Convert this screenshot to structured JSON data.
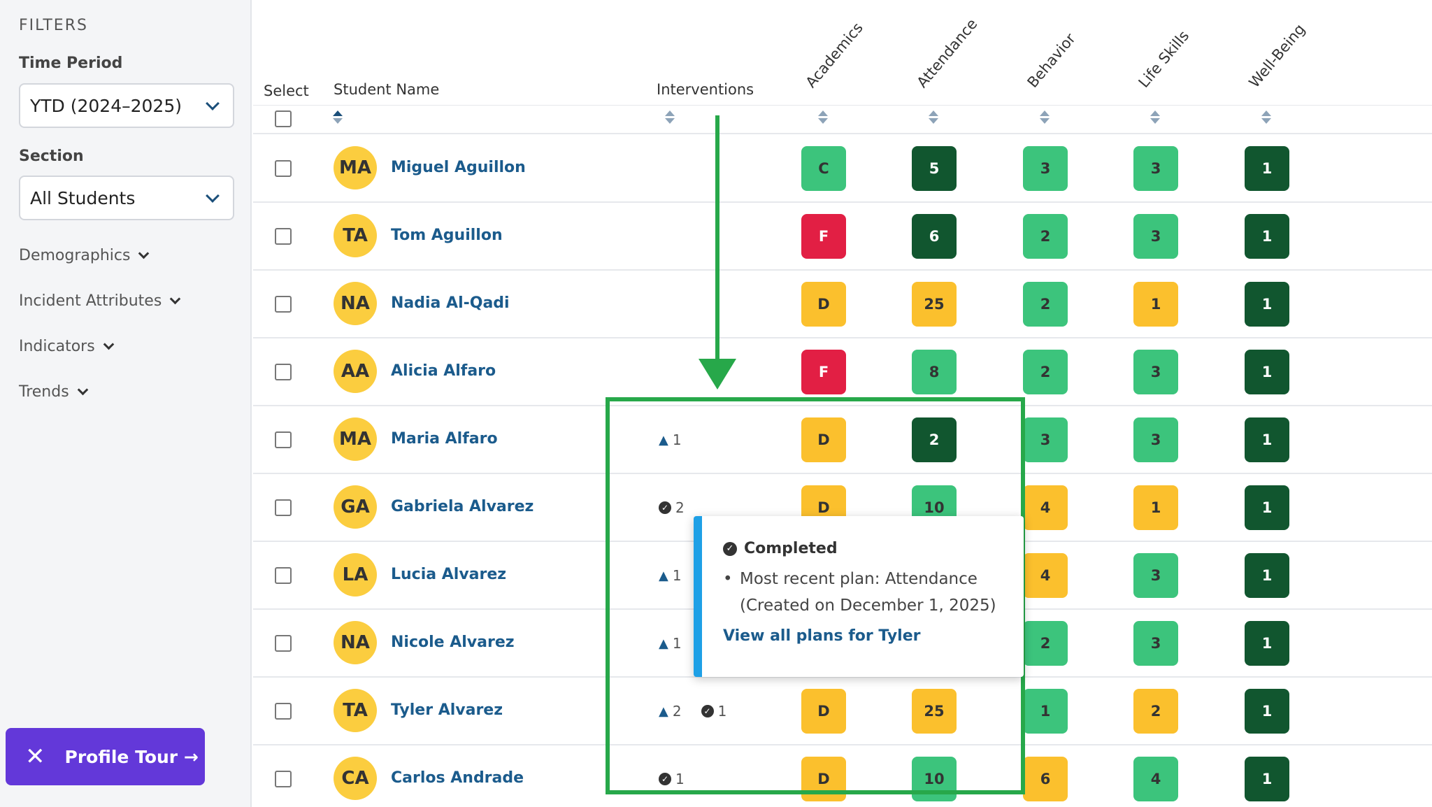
{
  "sidebar": {
    "filters_heading": "FILTERS",
    "time_period": {
      "label": "Time Period",
      "value": "YTD (2024–2025)"
    },
    "section": {
      "label": "Section",
      "value": "All Students"
    },
    "expanders": [
      "Demographics",
      "Incident Attributes",
      "Indicators",
      "Trends"
    ],
    "tour_button": {
      "label": "Profile Tour →",
      "close_icon": "✕"
    }
  },
  "table": {
    "headers": {
      "select": "Select",
      "student_name": "Student Name",
      "interventions": "Interventions",
      "academics": "Academics",
      "attendance": "Attendance",
      "behavior": "Behavior",
      "life_skills": "Life Skills",
      "well_being": "Well-Being"
    },
    "colors": {
      "dark_green": "#11562f",
      "green": "#3cc47c",
      "yellow": "#fbc02d",
      "red": "#e21f44",
      "avatar": "#fbcd3f",
      "link": "#1b5b8c",
      "annotation": "#27a84a",
      "tooltip_accent": "#1ea0e6"
    },
    "rows": [
      {
        "initials": "MA",
        "name": "Miguel Aguillon",
        "int_a": "",
        "int_b": "",
        "academics": "C",
        "attendance": "5",
        "behavior": "3",
        "life_skills": "3",
        "well_being": "1"
      },
      {
        "initials": "TA",
        "name": "Tom Aguillon",
        "int_a": "",
        "int_b": "",
        "academics": "F",
        "attendance": "6",
        "behavior": "2",
        "life_skills": "3",
        "well_being": "1"
      },
      {
        "initials": "NA",
        "name": "Nadia Al-Qadi",
        "int_a": "",
        "int_b": "",
        "academics": "D",
        "attendance": "25",
        "behavior": "2",
        "life_skills": "1",
        "well_being": "1"
      },
      {
        "initials": "AA",
        "name": "Alicia Alfaro",
        "int_a": "",
        "int_b": "",
        "academics": "F",
        "attendance": "8",
        "behavior": "2",
        "life_skills": "3",
        "well_being": "1"
      },
      {
        "initials": "MA",
        "name": "Maria Alfaro",
        "int_a": "1",
        "int_b": "",
        "academics": "D",
        "attendance": "2",
        "behavior": "3",
        "life_skills": "3",
        "well_being": "1"
      },
      {
        "initials": "GA",
        "name": "Gabriela Alvarez",
        "int_a": "",
        "int_b": "2",
        "academics": "D",
        "attendance": "10",
        "behavior": "4",
        "life_skills": "1",
        "well_being": "1"
      },
      {
        "initials": "LA",
        "name": "Lucia Alvarez",
        "int_a": "1",
        "int_b": "",
        "academics": "",
        "attendance": "",
        "behavior": "4",
        "life_skills": "3",
        "well_being": "1"
      },
      {
        "initials": "NA",
        "name": "Nicole Alvarez",
        "int_a": "1",
        "int_b": "",
        "academics": "",
        "attendance": "",
        "behavior": "2",
        "life_skills": "3",
        "well_being": "1"
      },
      {
        "initials": "TA",
        "name": "Tyler Alvarez",
        "int_a": "2",
        "int_b": "1",
        "academics": "D",
        "attendance": "25",
        "behavior": "1",
        "life_skills": "2",
        "well_being": "1"
      },
      {
        "initials": "CA",
        "name": "Carlos Andrade",
        "int_a": "",
        "int_b": "1",
        "academics": "D",
        "attendance": "10",
        "behavior": "6",
        "life_skills": "4",
        "well_being": "1"
      }
    ],
    "tile_colors": [
      {
        "academics": "#3cc47c",
        "attendance": "#11562f",
        "behavior": "#3cc47c",
        "life_skills": "#3cc47c",
        "well_being": "#11562f"
      },
      {
        "academics": "#e21f44",
        "attendance": "#11562f",
        "behavior": "#3cc47c",
        "life_skills": "#3cc47c",
        "well_being": "#11562f"
      },
      {
        "academics": "#fbc02d",
        "attendance": "#fbc02d",
        "behavior": "#3cc47c",
        "life_skills": "#fbc02d",
        "well_being": "#11562f"
      },
      {
        "academics": "#e21f44",
        "attendance": "#3cc47c",
        "behavior": "#3cc47c",
        "life_skills": "#3cc47c",
        "well_being": "#11562f"
      },
      {
        "academics": "#fbc02d",
        "attendance": "#11562f",
        "behavior": "#3cc47c",
        "life_skills": "#3cc47c",
        "well_being": "#11562f"
      },
      {
        "academics": "#fbc02d",
        "attendance": "#3cc47c",
        "behavior": "#fbc02d",
        "life_skills": "#fbc02d",
        "well_being": "#11562f"
      },
      {
        "academics": "",
        "attendance": "",
        "behavior": "#fbc02d",
        "life_skills": "#3cc47c",
        "well_being": "#11562f"
      },
      {
        "academics": "",
        "attendance": "",
        "behavior": "#3cc47c",
        "life_skills": "#3cc47c",
        "well_being": "#11562f"
      },
      {
        "academics": "#fbc02d",
        "attendance": "#fbc02d",
        "behavior": "#3cc47c",
        "life_skills": "#fbc02d",
        "well_being": "#11562f"
      },
      {
        "academics": "#fbc02d",
        "attendance": "#3cc47c",
        "behavior": "#fbc02d",
        "life_skills": "#3cc47c",
        "well_being": "#11562f"
      }
    ]
  },
  "tooltip": {
    "title": "Completed",
    "line1": "Most recent plan: Attendance",
    "line2": "(Created on December 1, 2025)",
    "link": "View all plans for Tyler"
  }
}
